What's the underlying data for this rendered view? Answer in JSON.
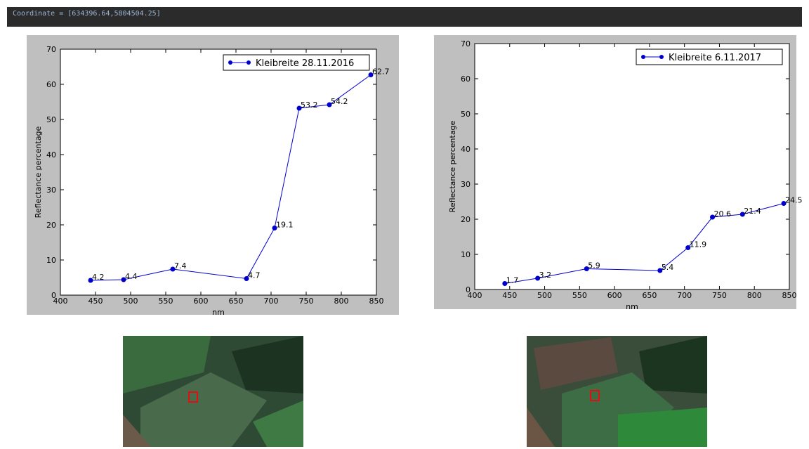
{
  "header": {
    "coordinate": "Coordinate = [634396.64,5804504.25]"
  },
  "chart_data": [
    {
      "type": "line",
      "x": [
        443,
        490,
        560,
        665,
        705,
        740,
        783,
        842
      ],
      "series": [
        {
          "name": "Kleibreite 28.11.2016",
          "color": "#0000cc",
          "values": [
            4.2,
            4.4,
            7.4,
            4.7,
            19.1,
            53.2,
            54.2,
            62.7
          ]
        }
      ],
      "xlabel": "nm",
      "ylabel": "Reflectance percentage",
      "xlim": [
        400,
        850
      ],
      "ylim": [
        0,
        70
      ],
      "xticks": [
        400,
        450,
        500,
        550,
        600,
        650,
        700,
        750,
        800,
        850
      ],
      "yticks": [
        0,
        10,
        20,
        30,
        40,
        50,
        60,
        70
      ],
      "legend": "upper right"
    },
    {
      "type": "line",
      "x": [
        443,
        490,
        560,
        665,
        705,
        740,
        783,
        842
      ],
      "series": [
        {
          "name": "Kleibreite 6.11.2017",
          "color": "#0000cc",
          "values": [
            1.7,
            3.2,
            5.9,
            5.4,
            11.9,
            20.6,
            21.4,
            24.5
          ]
        }
      ],
      "xlabel": "nm",
      "ylabel": "Reflectance percentage",
      "xlim": [
        400,
        850
      ],
      "ylim": [
        0,
        70
      ],
      "xticks": [
        400,
        450,
        500,
        550,
        600,
        650,
        700,
        750,
        800,
        850
      ],
      "yticks": [
        0,
        10,
        20,
        30,
        40,
        50,
        60,
        70
      ],
      "legend": "upper right"
    }
  ]
}
